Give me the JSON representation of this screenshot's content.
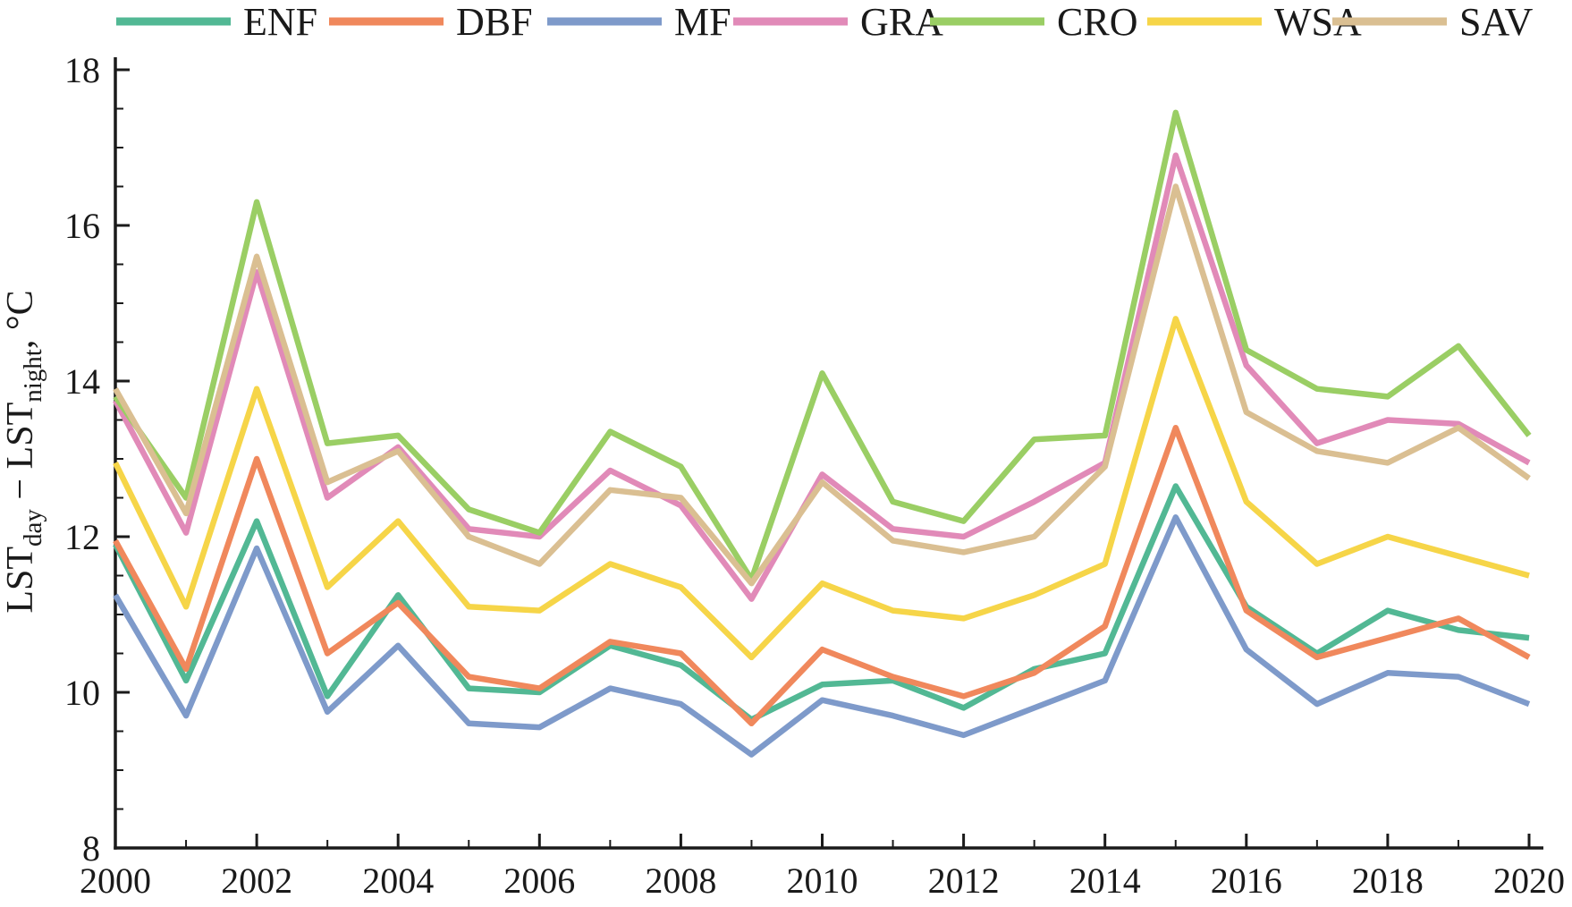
{
  "figure": {
    "background": "#ffffff",
    "axis_color": "#1a1a1a"
  },
  "chart_data": {
    "type": "line",
    "title": "",
    "xlabel": "",
    "ylabel": "LST_day - LST_night, °C",
    "ylabel_parts": [
      {
        "text": "LST",
        "sub": false
      },
      {
        "text": "day",
        "sub": true
      },
      {
        "text": " − ",
        "sub": false
      },
      {
        "text": "LST",
        "sub": false
      },
      {
        "text": "night",
        "sub": true
      },
      {
        "text": ", °C",
        "sub": false
      }
    ],
    "xlim": [
      2000,
      2020
    ],
    "ylim": [
      8,
      18
    ],
    "xticks": [
      2000,
      2002,
      2004,
      2006,
      2008,
      2010,
      2012,
      2014,
      2016,
      2018,
      2020
    ],
    "yticks": [
      8,
      10,
      12,
      14,
      16,
      18
    ],
    "x": [
      2000,
      2001,
      2002,
      2003,
      2004,
      2005,
      2006,
      2007,
      2008,
      2009,
      2010,
      2011,
      2012,
      2013,
      2014,
      2015,
      2016,
      2017,
      2018,
      2019,
      2020
    ],
    "grid": false,
    "legend_position": "top",
    "series": [
      {
        "name": "ENF",
        "color": "#52b894",
        "values": [
          11.9,
          10.15,
          12.2,
          9.95,
          11.25,
          10.05,
          10.0,
          10.6,
          10.35,
          9.65,
          10.1,
          10.15,
          9.8,
          10.3,
          10.5,
          12.65,
          11.1,
          10.5,
          11.05,
          10.8,
          10.7
        ]
      },
      {
        "name": "DBF",
        "color": "#f0885c",
        "values": [
          11.95,
          10.3,
          13.0,
          10.5,
          11.15,
          10.2,
          10.05,
          10.65,
          10.5,
          9.6,
          10.55,
          10.2,
          9.95,
          10.25,
          10.85,
          13.4,
          11.05,
          10.45,
          10.7,
          10.95,
          10.45
        ]
      },
      {
        "name": "MF",
        "color": "#7e9aca",
        "values": [
          11.25,
          9.7,
          11.85,
          9.75,
          10.6,
          9.6,
          9.55,
          10.05,
          9.85,
          9.2,
          9.9,
          9.7,
          9.45,
          9.8,
          10.15,
          12.25,
          10.55,
          9.85,
          10.25,
          10.2,
          9.85
        ]
      },
      {
        "name": "GRA",
        "color": "#e18ab8",
        "values": [
          13.75,
          12.05,
          15.4,
          12.5,
          13.15,
          12.1,
          12.0,
          12.85,
          12.4,
          11.2,
          12.8,
          12.1,
          12.0,
          12.45,
          12.95,
          16.9,
          14.2,
          13.2,
          13.5,
          13.45,
          12.95
        ]
      },
      {
        "name": "CRO",
        "color": "#9ace64",
        "values": [
          13.8,
          12.5,
          16.3,
          13.2,
          13.3,
          12.35,
          12.05,
          13.35,
          12.9,
          11.45,
          14.1,
          12.45,
          12.2,
          13.25,
          13.3,
          17.45,
          14.4,
          13.9,
          13.8,
          14.45,
          13.3
        ]
      },
      {
        "name": "WSA",
        "color": "#f6d548",
        "values": [
          12.95,
          11.1,
          13.9,
          11.35,
          12.2,
          11.1,
          11.05,
          11.65,
          11.35,
          10.45,
          11.4,
          11.05,
          10.95,
          11.25,
          11.65,
          14.8,
          12.45,
          11.65,
          12.0,
          11.75,
          11.5
        ]
      },
      {
        "name": "SAV",
        "color": "#dabf92",
        "values": [
          13.9,
          12.3,
          15.6,
          12.7,
          13.1,
          12.0,
          11.65,
          12.6,
          12.5,
          11.4,
          12.7,
          11.95,
          11.8,
          12.0,
          12.9,
          16.5,
          13.6,
          13.1,
          12.95,
          13.4,
          12.75
        ]
      }
    ]
  }
}
